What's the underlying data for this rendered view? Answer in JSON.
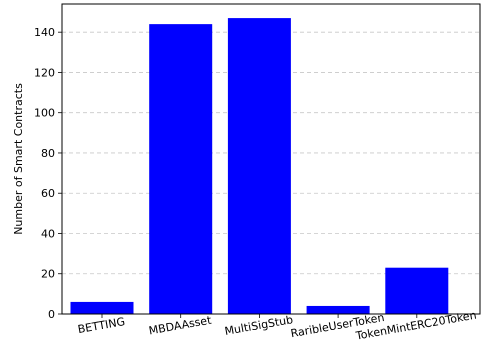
{
  "chart_data": {
    "type": "bar",
    "title": "",
    "xlabel": "",
    "ylabel": "Number of Smart Contracts",
    "categories": [
      "BETTING",
      "MBDAAsset",
      "MultiSigStub",
      "RaribleUserToken",
      "TokenMintERC20Token"
    ],
    "values": [
      6,
      144,
      147,
      4,
      23
    ],
    "ylim": [
      0,
      154
    ],
    "yticks": [
      0,
      20,
      40,
      60,
      80,
      100,
      120,
      140
    ],
    "grid": "y-dashed",
    "bar_color": "#0000ff",
    "legend": "none"
  }
}
